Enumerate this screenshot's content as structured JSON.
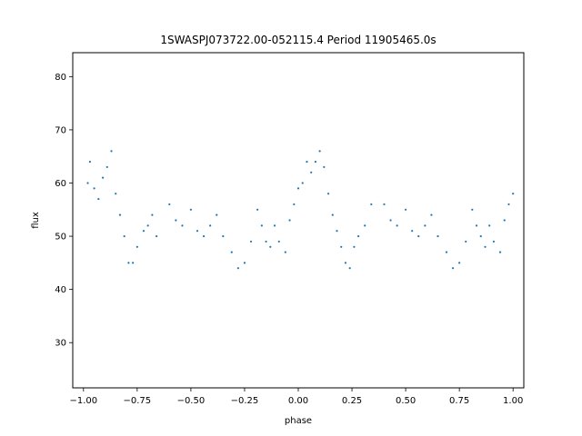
{
  "chart_data": {
    "type": "scatter",
    "title": "1SWASPJ073722.00-052115.4 Period 11905465.0s",
    "xlabel": "phase",
    "ylabel": "flux",
    "xlim": [
      -1.05,
      1.05
    ],
    "ylim": [
      21.5,
      84.5
    ],
    "x_ticks": [
      -1.0,
      -0.75,
      -0.5,
      -0.25,
      0.0,
      0.25,
      0.5,
      0.75,
      1.0
    ],
    "x_tick_labels": [
      "−1.00",
      "−0.75",
      "−0.50",
      "−0.25",
      "0.00",
      "0.25",
      "0.50",
      "0.75",
      "1.00"
    ],
    "y_ticks": [
      30,
      40,
      50,
      60,
      70,
      80
    ],
    "y_tick_labels": [
      "30",
      "40",
      "50",
      "60",
      "70",
      "80"
    ],
    "grid": false,
    "marker_color": "#1f77b4",
    "series": [
      {
        "values": [
          [
            -0.98,
            60
          ],
          [
            -0.97,
            64
          ],
          [
            -0.95,
            59
          ],
          [
            -0.93,
            57
          ],
          [
            -0.91,
            61
          ],
          [
            -0.89,
            63
          ],
          [
            -0.87,
            66
          ],
          [
            -0.85,
            58
          ],
          [
            -0.83,
            54
          ],
          [
            -0.81,
            50
          ],
          [
            -0.79,
            45
          ],
          [
            -0.77,
            45
          ],
          [
            -0.75,
            48
          ],
          [
            -0.72,
            51
          ],
          [
            -0.7,
            52
          ],
          [
            -0.68,
            54
          ],
          [
            -0.66,
            50
          ],
          [
            -0.6,
            56
          ],
          [
            -0.57,
            53
          ],
          [
            -0.54,
            52
          ],
          [
            -0.5,
            55
          ],
          [
            -0.47,
            51
          ],
          [
            -0.44,
            50
          ],
          [
            -0.41,
            52
          ],
          [
            -0.38,
            54
          ],
          [
            -0.35,
            50
          ],
          [
            -0.31,
            47
          ],
          [
            -0.28,
            44
          ],
          [
            -0.25,
            45
          ],
          [
            -0.22,
            49
          ],
          [
            -0.19,
            55
          ],
          [
            -0.17,
            52
          ],
          [
            -0.15,
            49
          ],
          [
            -0.13,
            48
          ],
          [
            -0.11,
            52
          ],
          [
            -0.09,
            49
          ],
          [
            -0.06,
            47
          ],
          [
            -0.04,
            53
          ],
          [
            -0.02,
            56
          ],
          [
            0.0,
            59
          ],
          [
            0.02,
            60
          ],
          [
            0.04,
            64
          ],
          [
            0.06,
            62
          ],
          [
            0.08,
            64
          ],
          [
            0.1,
            66
          ],
          [
            0.12,
            63
          ],
          [
            0.14,
            58
          ],
          [
            0.16,
            54
          ],
          [
            0.18,
            51
          ],
          [
            0.2,
            48
          ],
          [
            0.22,
            45
          ],
          [
            0.24,
            44
          ],
          [
            0.26,
            48
          ],
          [
            0.28,
            50
          ],
          [
            0.31,
            52
          ],
          [
            0.34,
            56
          ],
          [
            0.4,
            56
          ],
          [
            0.43,
            53
          ],
          [
            0.46,
            52
          ],
          [
            0.5,
            55
          ],
          [
            0.53,
            51
          ],
          [
            0.56,
            50
          ],
          [
            0.59,
            52
          ],
          [
            0.62,
            54
          ],
          [
            0.65,
            50
          ],
          [
            0.69,
            47
          ],
          [
            0.72,
            44
          ],
          [
            0.75,
            45
          ],
          [
            0.78,
            49
          ],
          [
            0.81,
            55
          ],
          [
            0.83,
            52
          ],
          [
            0.85,
            50
          ],
          [
            0.87,
            48
          ],
          [
            0.89,
            52
          ],
          [
            0.91,
            49
          ],
          [
            0.94,
            47
          ],
          [
            0.96,
            53
          ],
          [
            0.98,
            56
          ],
          [
            1.0,
            58
          ]
        ]
      }
    ]
  }
}
